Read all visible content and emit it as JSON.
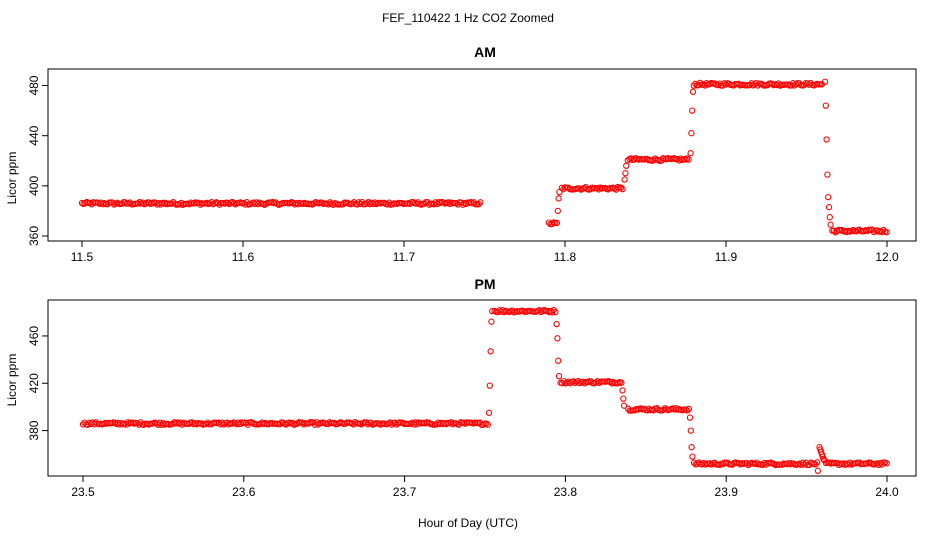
{
  "chart_data": {
    "type": "scatter",
    "title": "FEF_110422  1 Hz CO2 Zoomed",
    "xlabel": "Hour of Day (UTC)",
    "color": "#ff0000",
    "marker": "open-circle",
    "panels": [
      {
        "title": "AM",
        "ylabel": "Licor ppm",
        "xlim": [
          11.5,
          12.0
        ],
        "ylim": [
          360,
          490
        ],
        "xticks": [
          "11.5",
          "11.6",
          "11.7",
          "11.8",
          "11.9",
          "12.0"
        ],
        "yticks": [
          "360",
          "400",
          "440",
          "480"
        ],
        "segments": [
          {
            "x": [
              11.5,
              11.748
            ],
            "y": 386
          },
          {
            "x": [
              11.79,
              11.795
            ],
            "y": 370
          },
          {
            "x": [
              11.798,
              11.836
            ],
            "y": 398
          },
          {
            "x": [
              11.839,
              11.877
            ],
            "y": 421
          },
          {
            "x": [
              11.88,
              11.96
            ],
            "y": 481
          },
          {
            "x": [
              11.966,
              12.0
            ],
            "y": 364
          }
        ],
        "transitions": [
          {
            "x": 11.7955,
            "y": 380
          },
          {
            "x": 11.796,
            "y": 390
          },
          {
            "x": 11.7965,
            "y": 395
          },
          {
            "x": 11.837,
            "y": 405
          },
          {
            "x": 11.8375,
            "y": 410
          },
          {
            "x": 11.838,
            "y": 416
          },
          {
            "x": 11.878,
            "y": 426
          },
          {
            "x": 11.8785,
            "y": 442
          },
          {
            "x": 11.879,
            "y": 460
          },
          {
            "x": 11.8795,
            "y": 475
          },
          {
            "x": 11.9615,
            "y": 483
          },
          {
            "x": 11.962,
            "y": 464
          },
          {
            "x": 11.9625,
            "y": 437
          },
          {
            "x": 11.963,
            "y": 409
          },
          {
            "x": 11.9635,
            "y": 391
          },
          {
            "x": 11.964,
            "y": 383
          },
          {
            "x": 11.9645,
            "y": 375
          },
          {
            "x": 11.965,
            "y": 369
          }
        ]
      },
      {
        "title": "PM",
        "ylabel": "Licor ppm",
        "xlim": [
          23.5,
          24.0
        ],
        "ylim": [
          345,
          487
        ],
        "xticks": [
          "23.5",
          "23.6",
          "23.7",
          "23.8",
          "23.9",
          "24.0"
        ],
        "yticks": [
          "380",
          "420",
          "460"
        ],
        "segments": [
          {
            "x": [
              23.5,
              23.752
            ],
            "y": 386
          },
          {
            "x": [
              23.756,
              23.794
            ],
            "y": 481
          },
          {
            "x": [
              23.797,
              23.835
            ],
            "y": 421
          },
          {
            "x": [
              23.839,
              23.877
            ],
            "y": 398
          },
          {
            "x": [
              23.88,
              23.957
            ],
            "y": 352
          },
          {
            "x": [
              23.962,
              24.0
            ],
            "y": 352
          }
        ],
        "transitions": [
          {
            "x": 23.7525,
            "y": 395
          },
          {
            "x": 23.753,
            "y": 418
          },
          {
            "x": 23.7535,
            "y": 447
          },
          {
            "x": 23.754,
            "y": 472
          },
          {
            "x": 23.7545,
            "y": 481
          },
          {
            "x": 23.7945,
            "y": 470
          },
          {
            "x": 23.795,
            "y": 458
          },
          {
            "x": 23.7955,
            "y": 439
          },
          {
            "x": 23.796,
            "y": 426
          },
          {
            "x": 23.8355,
            "y": 414
          },
          {
            "x": 23.836,
            "y": 407
          },
          {
            "x": 23.8365,
            "y": 401
          },
          {
            "x": 23.8775,
            "y": 391
          },
          {
            "x": 23.878,
            "y": 380
          },
          {
            "x": 23.8785,
            "y": 366
          },
          {
            "x": 23.879,
            "y": 358
          },
          {
            "x": 23.957,
            "y": 346
          },
          {
            "x": 23.958,
            "y": 366
          },
          {
            "x": 23.9585,
            "y": 364
          },
          {
            "x": 23.959,
            "y": 362
          },
          {
            "x": 23.9595,
            "y": 360
          },
          {
            "x": 23.96,
            "y": 358
          },
          {
            "x": 23.9605,
            "y": 356
          },
          {
            "x": 23.961,
            "y": 355
          }
        ]
      }
    ]
  }
}
